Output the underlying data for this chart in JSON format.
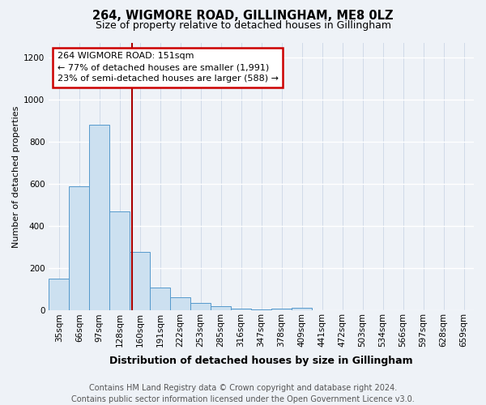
{
  "title1": "264, WIGMORE ROAD, GILLINGHAM, ME8 0LZ",
  "title2": "Size of property relative to detached houses in Gillingham",
  "xlabel": "Distribution of detached houses by size in Gillingham",
  "ylabel": "Number of detached properties",
  "categories": [
    "35sqm",
    "66sqm",
    "97sqm",
    "128sqm",
    "160sqm",
    "191sqm",
    "222sqm",
    "253sqm",
    "285sqm",
    "316sqm",
    "347sqm",
    "378sqm",
    "409sqm",
    "441sqm",
    "472sqm",
    "503sqm",
    "534sqm",
    "566sqm",
    "597sqm",
    "628sqm",
    "659sqm"
  ],
  "values": [
    150,
    590,
    880,
    470,
    280,
    110,
    65,
    35,
    20,
    10,
    5,
    10,
    15,
    0,
    0,
    0,
    0,
    0,
    0,
    0,
    0
  ],
  "bar_color": "#cce0f0",
  "bar_edge_color": "#5599cc",
  "red_line_x": 3.62,
  "annotation_text": "264 WIGMORE ROAD: 151sqm\n← 77% of detached houses are smaller (1,991)\n23% of semi-detached houses are larger (588) →",
  "footnote": "Contains HM Land Registry data © Crown copyright and database right 2024.\nContains public sector information licensed under the Open Government Licence v3.0.",
  "ylim": [
    0,
    1270
  ],
  "yticks": [
    0,
    200,
    400,
    600,
    800,
    1000,
    1200
  ],
  "bg_color": "#eef2f7",
  "annotation_box_color": "white",
  "annotation_box_edge": "#cc0000",
  "red_line_color": "#aa0000",
  "title1_fontsize": 10.5,
  "title2_fontsize": 9,
  "xlabel_fontsize": 9,
  "ylabel_fontsize": 8,
  "footnote_fontsize": 7,
  "tick_fontsize": 7.5,
  "annot_fontsize": 8
}
